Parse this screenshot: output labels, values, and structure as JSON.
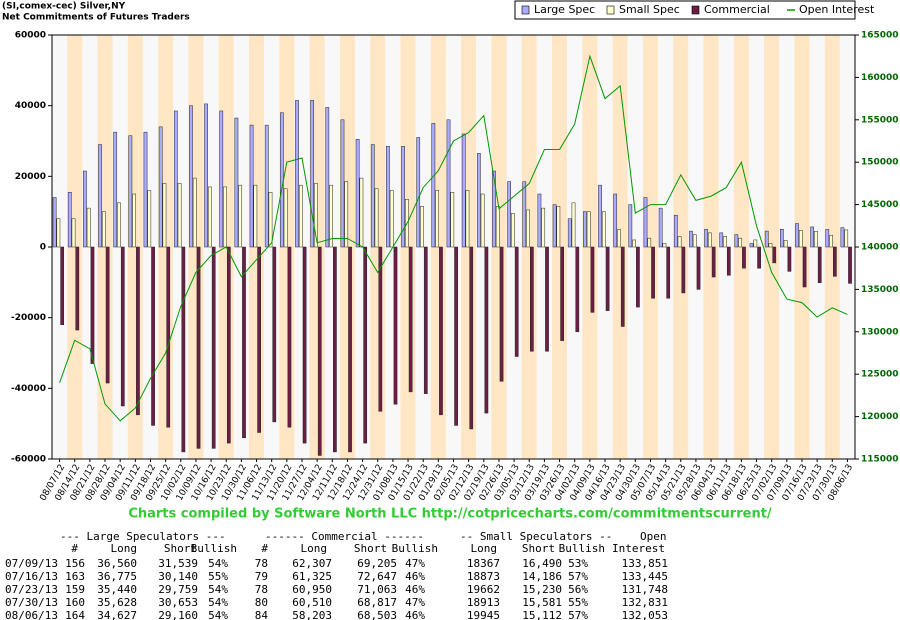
{
  "chart_data": {
    "type": "bar",
    "title": "(SI,comex-cec) Silver,NY",
    "subtitle": "Net Commitments of Futures Traders",
    "footer": "Charts compiled by Software North LLC  http://cotpricecharts.com/commitmentscurrent/",
    "categories": [
      "08/07/12",
      "08/14/12",
      "08/21/12",
      "08/28/12",
      "09/04/12",
      "09/11/12",
      "09/18/12",
      "09/25/12",
      "10/02/12",
      "10/09/12",
      "10/16/12",
      "10/23/12",
      "10/30/12",
      "11/06/12",
      "11/13/12",
      "11/20/12",
      "11/27/12",
      "12/04/12",
      "12/11/12",
      "12/18/12",
      "12/24/12",
      "12/31/12",
      "01/08/13",
      "01/15/13",
      "01/22/13",
      "01/29/13",
      "02/05/13",
      "02/12/13",
      "02/19/13",
      "02/26/13",
      "03/05/13",
      "03/12/13",
      "03/19/13",
      "03/26/13",
      "04/02/13",
      "04/09/13",
      "04/16/13",
      "04/23/13",
      "04/30/13",
      "05/07/13",
      "05/14/13",
      "05/21/13",
      "05/28/13",
      "06/04/13",
      "06/11/13",
      "06/18/13",
      "06/25/13",
      "07/02/13",
      "07/09/13",
      "07/16/13",
      "07/23/13",
      "07/30/13",
      "08/06/13"
    ],
    "series": [
      {
        "name": "Large Spec",
        "type": "bar",
        "color": "#aaaaff",
        "values": [
          14000,
          15500,
          21500,
          29000,
          32500,
          31500,
          32500,
          34000,
          38500,
          40000,
          40500,
          38500,
          36500,
          34500,
          34500,
          38000,
          41500,
          41500,
          39500,
          36000,
          30500,
          29000,
          28500,
          28500,
          31000,
          35000,
          36000,
          32000,
          26500,
          21500,
          18500,
          18500,
          15000,
          12000,
          8000,
          10000,
          17500,
          15000,
          12000,
          14000,
          11000,
          9000,
          4500,
          5000,
          4000,
          3500,
          1000,
          4500,
          5021,
          6635,
          5681,
          4975,
          5467
        ]
      },
      {
        "name": "Small Spec",
        "type": "bar",
        "color": "#ffffcc",
        "values": [
          8000,
          8000,
          11000,
          10000,
          12500,
          15000,
          16000,
          18000,
          18000,
          19500,
          17000,
          17000,
          17500,
          17500,
          15500,
          16500,
          17500,
          18000,
          17500,
          18500,
          19500,
          16500,
          16000,
          13500,
          11500,
          16000,
          15500,
          16000,
          15000,
          11500,
          9500,
          10500,
          11000,
          11500,
          12500,
          10000,
          10000,
          5000,
          2000,
          2500,
          1000,
          3000,
          3500,
          4000,
          3000,
          2500,
          2000,
          1000,
          1877,
          4687,
          4432,
          3332,
          4833
        ]
      },
      {
        "name": "Commercial",
        "type": "bar",
        "color": "#6b1f45",
        "values": [
          -22000,
          -23500,
          -33000,
          -38500,
          -45000,
          -47500,
          -50500,
          -51000,
          -58000,
          -57000,
          -57000,
          -55500,
          -54000,
          -52500,
          -49500,
          -51000,
          -55500,
          -59000,
          -58000,
          -58000,
          -55500,
          -46500,
          -44500,
          -41000,
          -41500,
          -47500,
          -50500,
          -51500,
          -47000,
          -38000,
          -31000,
          -29500,
          -29500,
          -26500,
          -24000,
          -18500,
          -18000,
          -22500,
          -17000,
          -14500,
          -14500,
          -13000,
          -12000,
          -8500,
          -8000,
          -6000,
          -6000,
          -4500,
          -6898,
          -11322,
          -10113,
          -8307,
          -10300
        ]
      },
      {
        "name": "Open Interest",
        "type": "line",
        "axis": "y2",
        "color": "#009900",
        "values": [
          124000,
          129000,
          128000,
          121500,
          119500,
          121000,
          124500,
          127500,
          133000,
          137000,
          139000,
          140000,
          136500,
          138500,
          140500,
          150000,
          150500,
          140500,
          141000,
          141000,
          140000,
          137000,
          140000,
          143000,
          147000,
          149000,
          152500,
          153500,
          155500,
          144500,
          146000,
          147500,
          151500,
          151500,
          154500,
          162500,
          157500,
          159000,
          144000,
          145000,
          145000,
          148500,
          145500,
          146000,
          147000,
          150000,
          142500,
          137000,
          133851,
          133445,
          131748,
          132831,
          132053
        ]
      }
    ],
    "ylim": [
      -60000,
      60000
    ],
    "yticks": [
      -60000,
      -40000,
      -20000,
      0,
      20000,
      40000,
      60000
    ],
    "y2lim": [
      115000,
      165000
    ],
    "y2ticks": [
      115000,
      120000,
      125000,
      130000,
      135000,
      140000,
      145000,
      150000,
      155000,
      160000,
      165000
    ],
    "legend": "top-right",
    "grid": false
  },
  "table": {
    "group_headers": [
      "--- Large Speculators ---",
      "------ Commercial ------",
      "-- Small Speculators --",
      "Open"
    ],
    "headers": [
      "#",
      "Long",
      "Short",
      "Bullish",
      "#",
      "Long",
      "Short",
      "Bullish",
      "Long",
      "Short",
      "Bullish",
      "Interest"
    ],
    "rows": [
      [
        "07/09/13",
        "156",
        "36,560",
        "31,539",
        "54%",
        "78",
        "62,307",
        "69,205",
        "47%",
        "18367",
        "16,490",
        "53%",
        "133,851"
      ],
      [
        "07/16/13",
        "163",
        "36,775",
        "30,140",
        "55%",
        "79",
        "61,325",
        "72,647",
        "46%",
        "18873",
        "14,186",
        "57%",
        "133,445"
      ],
      [
        "07/23/13",
        "159",
        "35,440",
        "29,759",
        "54%",
        "78",
        "60,950",
        "71,063",
        "46%",
        "19662",
        "15,230",
        "56%",
        "131,748"
      ],
      [
        "07/30/13",
        "160",
        "35,628",
        "30,653",
        "54%",
        "80",
        "60,510",
        "68,817",
        "47%",
        "18913",
        "15,581",
        "55%",
        "132,831"
      ],
      [
        "08/06/13",
        "164",
        "34,627",
        "29,160",
        "54%",
        "84",
        "58,203",
        "68,503",
        "46%",
        "19945",
        "15,112",
        "57%",
        "132,053"
      ]
    ]
  }
}
